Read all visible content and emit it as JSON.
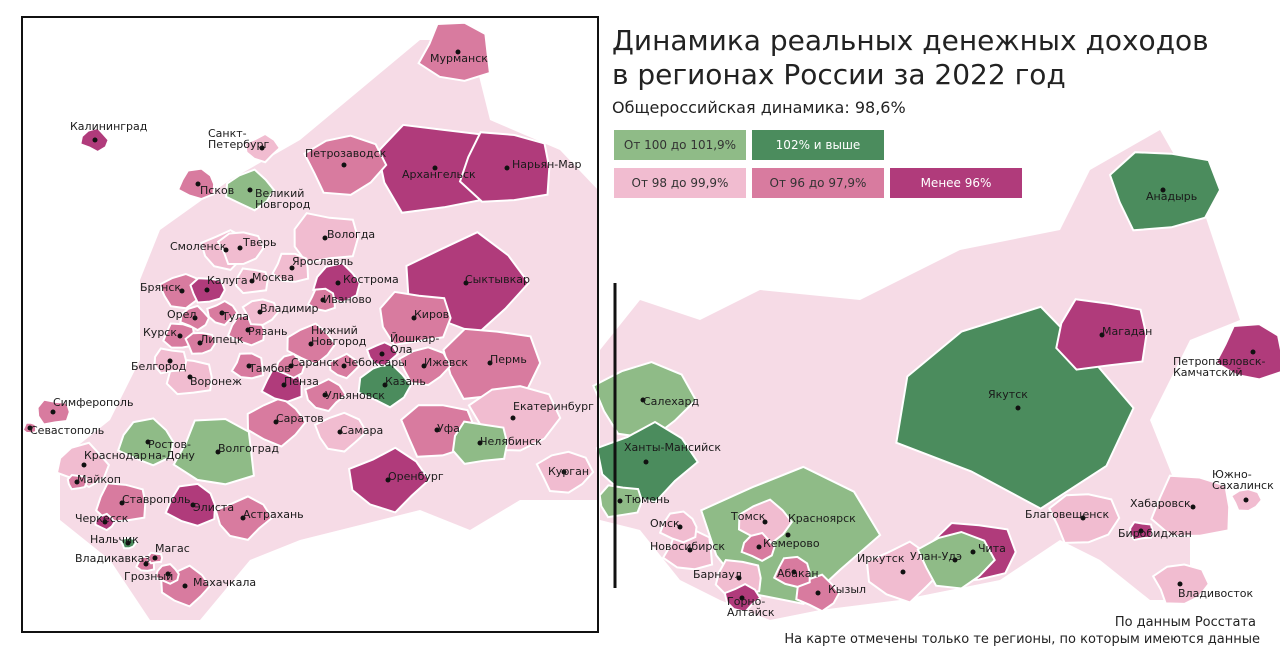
{
  "title_lines": [
    "Динамика реальных денежных доходов",
    "в регионах России за 2022 год"
  ],
  "subtitle": "Общероссийская динамика: 98,6%",
  "legend": [
    {
      "label": "От 100 до 101,9%",
      "color": "#8fbb87"
    },
    {
      "label": "102% и выше",
      "color": "#4b8c5d"
    },
    {
      "label": "От 98 до 99,9%",
      "color": "#f1bcd0"
    },
    {
      "label": "От 96 до 97,9%",
      "color": "#d87b9f"
    },
    {
      "label": "Менее 96%",
      "color": "#b03b7b"
    }
  ],
  "regions": [
    {
      "name": "Мурманск",
      "category": 3
    },
    {
      "name": "Калининград",
      "category": 4
    },
    {
      "name": "Санкт-\nПетербург",
      "category": 2
    },
    {
      "name": "Петрозаводск",
      "category": 3
    },
    {
      "name": "Архангельск",
      "category": 4
    },
    {
      "name": "Нарьян-Мар",
      "category": 4
    },
    {
      "name": "Псков",
      "category": 3
    },
    {
      "name": "Великий\nНовгород",
      "category": 0
    },
    {
      "name": "Смоленск",
      "category": 2
    },
    {
      "name": "Тверь",
      "category": 2
    },
    {
      "name": "Вологда",
      "category": 2
    },
    {
      "name": "Ярославль",
      "category": 2
    },
    {
      "name": "Кострома",
      "category": 4
    },
    {
      "name": "Сыктывкар",
      "category": 4
    },
    {
      "name": "Брянск",
      "category": 3
    },
    {
      "name": "Калуга",
      "category": 4
    },
    {
      "name": "Москва",
      "category": 2
    },
    {
      "name": "Иваново",
      "category": 3
    },
    {
      "name": "Орел",
      "category": 3
    },
    {
      "name": "Тула",
      "category": 3
    },
    {
      "name": "Владимир",
      "category": 2
    },
    {
      "name": "Киров",
      "category": 3
    },
    {
      "name": "Курск",
      "category": 3
    },
    {
      "name": "Рязань",
      "category": 3
    },
    {
      "name": "Нижний\nНовгород",
      "category": 3
    },
    {
      "name": "Йошкар-\nОла",
      "category": 4
    },
    {
      "name": "Липецк",
      "category": 3
    },
    {
      "name": "Белгород",
      "category": 2
    },
    {
      "name": "Тамбов",
      "category": 3
    },
    {
      "name": "Саранск",
      "category": 3
    },
    {
      "name": "Чебоксары",
      "category": 3
    },
    {
      "name": "Ижевск",
      "category": 3
    },
    {
      "name": "Пермь",
      "category": 3
    },
    {
      "name": "Воронеж",
      "category": 2
    },
    {
      "name": "Пенза",
      "category": 4
    },
    {
      "name": "Казань",
      "category": 1
    },
    {
      "name": "Ульяновск",
      "category": 3
    },
    {
      "name": "Екатеринбург",
      "category": 2
    },
    {
      "name": "Симферополь",
      "category": 3
    },
    {
      "name": "Севастополь",
      "category": 3
    },
    {
      "name": "Ростов-\nна-Дону",
      "category": 0
    },
    {
      "name": "Саратов",
      "category": 3
    },
    {
      "name": "Самара",
      "category": 2
    },
    {
      "name": "Уфа",
      "category": 3
    },
    {
      "name": "Челябинск",
      "category": 0
    },
    {
      "name": "Волгоград",
      "category": 0
    },
    {
      "name": "Краснодар",
      "category": 2
    },
    {
      "name": "Оренбург",
      "category": 4
    },
    {
      "name": "Курган",
      "category": 2
    },
    {
      "name": "Майкоп",
      "category": 3
    },
    {
      "name": "Ставрополь",
      "category": 3
    },
    {
      "name": "Элиста",
      "category": 4
    },
    {
      "name": "Черкесск",
      "category": 4
    },
    {
      "name": "Астрахань",
      "category": 3
    },
    {
      "name": "Нальчик",
      "category": 1
    },
    {
      "name": "Магас",
      "category": 3
    },
    {
      "name": "Владикавказ",
      "category": 3
    },
    {
      "name": "Грозный",
      "category": 3
    },
    {
      "name": "Махачкала",
      "category": 3
    },
    {
      "name": "Салехард",
      "category": 0
    },
    {
      "name": "Анадырь",
      "category": 1
    },
    {
      "name": "Магадан",
      "category": 4
    },
    {
      "name": "Петропавловск-\nКамчатский",
      "category": 4
    },
    {
      "name": "Якутск",
      "category": 1
    },
    {
      "name": "Ханты-Мансийск",
      "category": 1
    },
    {
      "name": "Южно-\nСахалинск",
      "category": 2
    },
    {
      "name": "Тюмень",
      "category": 0
    },
    {
      "name": "Хабаровск",
      "category": 2
    },
    {
      "name": "Омск",
      "category": 2
    },
    {
      "name": "Томск",
      "category": 2
    },
    {
      "name": "Красноярск",
      "category": 0
    },
    {
      "name": "Благовещенск",
      "category": 2
    },
    {
      "name": "Биробиджан",
      "category": 4
    },
    {
      "name": "Новосибирск",
      "category": 2
    },
    {
      "name": "Кемерово",
      "category": 3
    },
    {
      "name": "Иркутск",
      "category": 2
    },
    {
      "name": "Улан-Удэ",
      "category": 0
    },
    {
      "name": "Чита",
      "category": 4
    },
    {
      "name": "Барнаул",
      "category": 2
    },
    {
      "name": "Абакан",
      "category": 3
    },
    {
      "name": "Кызыл",
      "category": 3
    },
    {
      "name": "Горно-\nАлтайск",
      "category": 4
    },
    {
      "name": "Владивосток",
      "category": 2
    }
  ],
  "source": "По данным Росстата",
  "note": "На карте отмечены только те регионы, по которым имеются данные"
}
